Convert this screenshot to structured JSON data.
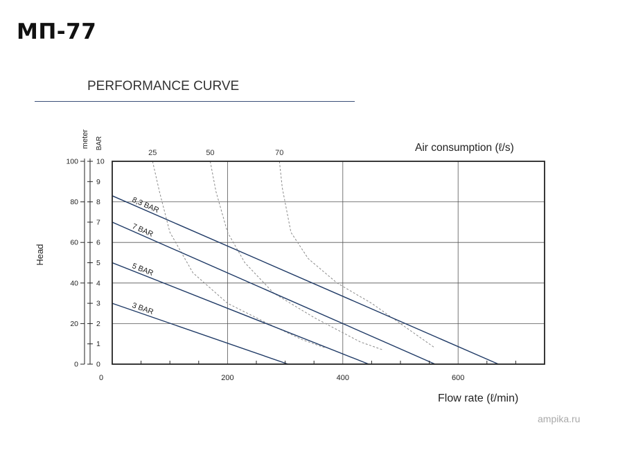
{
  "header": {
    "model": "МП-77"
  },
  "chart_data": {
    "type": "line",
    "title": "PERFORMANCE CURVE",
    "xlabel": "Flow rate (ℓ/min)",
    "ylabel": "Head",
    "y_unit_meter": "meter",
    "y_unit_bar": "BAR",
    "air_label": "Air consumption (ℓ/s)",
    "xlim": [
      0,
      750
    ],
    "ylim": [
      0,
      10
    ],
    "x_ticks": [
      0,
      200,
      400,
      600
    ],
    "x_grid": [
      200,
      400,
      600
    ],
    "y_ticks_meter": [
      0,
      20,
      40,
      60,
      80,
      100
    ],
    "y_ticks_bar": [
      0,
      1,
      2,
      3,
      4,
      5,
      6,
      7,
      8,
      9,
      10
    ],
    "y_grid": [
      2,
      4,
      6,
      8
    ],
    "grid": true,
    "series": [
      {
        "name": "8,3 BAR",
        "x": [
          0,
          670
        ],
        "y": [
          8.3,
          0
        ]
      },
      {
        "name": "7 BAR",
        "x": [
          0,
          560
        ],
        "y": [
          7.0,
          0
        ]
      },
      {
        "name": "5 BAR",
        "x": [
          0,
          445
        ],
        "y": [
          5.0,
          0
        ]
      },
      {
        "name": "3 BAR",
        "x": [
          0,
          305
        ],
        "y": [
          3.0,
          0
        ]
      }
    ],
    "air_series": [
      {
        "name": "25",
        "x": [
          70,
          82,
          100,
          140,
          200,
          270,
          330,
          370
        ],
        "y": [
          10,
          8.5,
          6.5,
          4.5,
          3.0,
          2.0,
          1.2,
          0.8
        ]
      },
      {
        "name": "50",
        "x": [
          170,
          180,
          200,
          230,
          280,
          350,
          430,
          470
        ],
        "y": [
          10,
          8.5,
          6.5,
          5.0,
          3.5,
          2.3,
          1.1,
          0.7
        ]
      },
      {
        "name": "70",
        "x": [
          290,
          295,
          310,
          340,
          390,
          450,
          520,
          560
        ],
        "y": [
          10,
          8.7,
          6.5,
          5.2,
          4.0,
          3.0,
          1.6,
          0.8
        ]
      }
    ]
  },
  "footer": {
    "watermark": "ampika.ru"
  }
}
